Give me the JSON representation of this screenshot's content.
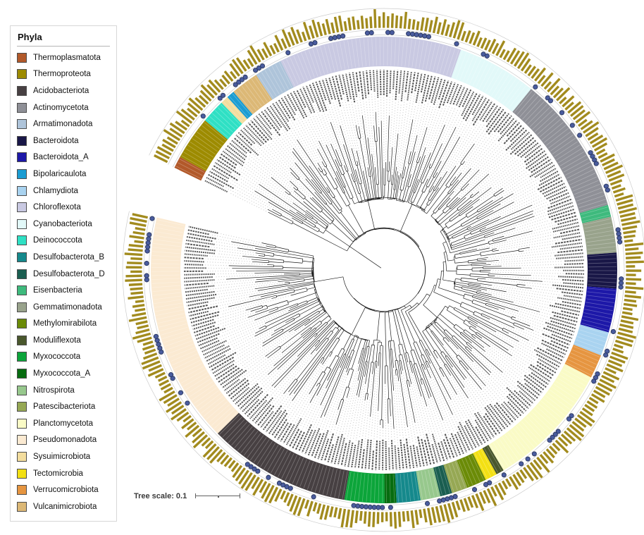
{
  "figure": {
    "type": "circular-phylogenetic-tree",
    "background": "#ffffff"
  },
  "legend": {
    "title": "Phyla",
    "items": [
      {
        "label": "Thermoplasmatota",
        "color": "#b2592a"
      },
      {
        "label": "Thermoproteota",
        "color": "#9d8b00"
      },
      {
        "label": "Acidobacteriota",
        "color": "#474042"
      },
      {
        "label": "Actinomycetota",
        "color": "#8f9097"
      },
      {
        "label": "Armatimonadota",
        "color": "#aec4da"
      },
      {
        "label": "Bacteroidota",
        "color": "#191747"
      },
      {
        "label": "Bacteroidota_A",
        "color": "#1d18a8"
      },
      {
        "label": "Bipolaricaulota",
        "color": "#1a9cd2"
      },
      {
        "label": "Chlamydiota",
        "color": "#a9d3f0"
      },
      {
        "label": "Chloroflexota",
        "color": "#c9c9e2"
      },
      {
        "label": "Cyanobacteriota",
        "color": "#e2f9f9"
      },
      {
        "label": "Deinococcota",
        "color": "#2fe0c4"
      },
      {
        "label": "Desulfobacterota_B",
        "color": "#15898c"
      },
      {
        "label": "Desulfobacterota_D",
        "color": "#1a5e50"
      },
      {
        "label": "Eisenbacteria",
        "color": "#3eba7d"
      },
      {
        "label": "Gemmatimonadota",
        "color": "#99a38c"
      },
      {
        "label": "Methylomirabilota",
        "color": "#6b8b07"
      },
      {
        "label": "Moduliflexota",
        "color": "#49572c"
      },
      {
        "label": "Myxococcota",
        "color": "#0ca53a"
      },
      {
        "label": "Myxococcota_A",
        "color": "#076c10"
      },
      {
        "label": "Nitrospirota",
        "color": "#97c88d"
      },
      {
        "label": "Patescibacteriota",
        "color": "#96a854"
      },
      {
        "label": "Planctomycetota",
        "color": "#fafbc6"
      },
      {
        "label": "Pseudomonadota",
        "color": "#fbead2"
      },
      {
        "label": "Sysuimicrobiota",
        "color": "#f3dd9e"
      },
      {
        "label": "Tectomicrobia",
        "color": "#f3e013"
      },
      {
        "label": "Verrucomicrobiota",
        "color": "#e69540"
      },
      {
        "label": "Vulcanimicrobiota",
        "color": "#dcb876"
      }
    ]
  },
  "scale_bar": {
    "label": "Tree scale: 0.1"
  },
  "chart_data": {
    "type": "circular_phylogeny",
    "leaf_total": 350,
    "start_angle_deg": 154,
    "arc_span_deg": 347,
    "gap_deg": 13,
    "rings": [
      "inner: cladogram branches",
      "leaf labels with dotted leaders",
      "phylum color band",
      "blue presence dots",
      "outer olive bar chart ring"
    ],
    "segments_clockwise_from_gap": [
      {
        "phylum": "Thermoplasmatota",
        "leaves": 3,
        "dot_density": 0.65
      },
      {
        "phylum": "Thermoproteota",
        "leaves": 11,
        "dot_density": 0.55
      },
      {
        "phylum": "Deinococcota",
        "leaves": 6,
        "dot_density": 0.45
      },
      {
        "phylum": "Sysuimicrobiota",
        "leaves": 2,
        "dot_density": 0.5
      },
      {
        "phylum": "Bipolaricaulota",
        "leaves": 2,
        "dot_density": 0.5
      },
      {
        "phylum": "Vulcanimicrobiota",
        "leaves": 7,
        "dot_density": 0.6
      },
      {
        "phylum": "Armatimonadota",
        "leaves": 7,
        "dot_density": 0.35
      },
      {
        "phylum": "Chloroflexota",
        "leaves": 46,
        "dot_density": 0.32
      },
      {
        "phylum": "Cyanobacteriota",
        "leaves": 20,
        "dot_density": 0.08
      },
      {
        "phylum": "Actinomycetota",
        "leaves": 35,
        "dot_density": 0.35
      },
      {
        "phylum": "Eisenbacteria",
        "leaves": 3,
        "dot_density": 0.4
      },
      {
        "phylum": "Gemmatimonadota",
        "leaves": 9,
        "dot_density": 0.45
      },
      {
        "phylum": "Bacteroidota",
        "leaves": 9,
        "dot_density": 0.3
      },
      {
        "phylum": "Bacteroidota_A",
        "leaves": 11,
        "dot_density": 0.35
      },
      {
        "phylum": "Chlamydiota",
        "leaves": 6,
        "dot_density": 0.3
      },
      {
        "phylum": "Verrucomicrobiota",
        "leaves": 6,
        "dot_density": 0.45
      },
      {
        "phylum": "Planctomycetota",
        "leaves": 32,
        "dot_density": 0.5
      },
      {
        "phylum": "Moduliflexota",
        "leaves": 2,
        "dot_density": 0.5
      },
      {
        "phylum": "Tectomicrobia",
        "leaves": 3,
        "dot_density": 0.5
      },
      {
        "phylum": "Methylomirabilota",
        "leaves": 5,
        "dot_density": 0.55
      },
      {
        "phylum": "Patescibacteriota",
        "leaves": 4,
        "dot_density": 0.5
      },
      {
        "phylum": "Desulfobacterota_D",
        "leaves": 3,
        "dot_density": 0.5
      },
      {
        "phylum": "Nitrospirota",
        "leaves": 5,
        "dot_density": 0.5
      },
      {
        "phylum": "Desulfobacterota_B",
        "leaves": 6,
        "dot_density": 0.55
      },
      {
        "phylum": "Myxococcota_A",
        "leaves": 3,
        "dot_density": 0.55
      },
      {
        "phylum": "Myxococcota",
        "leaves": 10,
        "dot_density": 0.6
      },
      {
        "phylum": "Acidobacteriota",
        "leaves": 36,
        "dot_density": 0.5
      },
      {
        "phylum": "Pseudomonadota",
        "leaves": 58,
        "dot_density": 0.48
      }
    ],
    "outer_bar_ring": {
      "meaning": "per-genome bar",
      "color": "#a28b1e"
    },
    "presence_dots": {
      "fill": "#4a5c9e",
      "stroke": "#27355f"
    },
    "branch_color": "#1b1b1b",
    "leader_color": "#c3c3c3",
    "label_color": "#3f3f3f",
    "guide_circle_color": "#cccccc",
    "seed": 11
  }
}
